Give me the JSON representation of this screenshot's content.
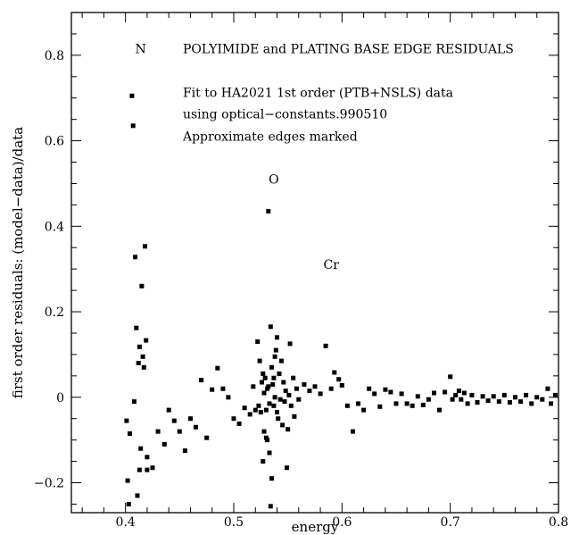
{
  "chart_data": {
    "type": "scatter",
    "title": "",
    "xlabel": "energy",
    "ylabel": "first order residuals: (model−data)/data",
    "xlim": [
      0.35,
      0.8
    ],
    "ylim": [
      -0.27,
      0.9
    ],
    "grid": false,
    "legend": "none",
    "marker_color": "#000000",
    "x_ticks": [
      0.4,
      0.5,
      0.6,
      0.7,
      0.8
    ],
    "x_tick_labels": [
      "0.4",
      "0.5",
      "0.6",
      "0.7",
      "0.8"
    ],
    "y_ticks": [
      -0.2,
      0,
      0.2,
      0.4,
      0.6,
      0.8
    ],
    "y_tick_labels": [
      "−0.2",
      "0",
      "0.2",
      "0.4",
      "0.6",
      "0.8"
    ],
    "annotations": [
      {
        "text": "N",
        "x": 0.414,
        "y": 0.805,
        "anchor": "middle"
      },
      {
        "text": "POLYIMIDE and PLATING BASE EDGE RESIDUALS",
        "x": 0.453,
        "y": 0.805,
        "anchor": "start"
      },
      {
        "text": "Fit to HA2021 1st order (PTB+NSLS) data",
        "x": 0.453,
        "y": 0.703,
        "anchor": "start"
      },
      {
        "text": "using optical−constants.990510",
        "x": 0.453,
        "y": 0.652,
        "anchor": "start"
      },
      {
        "text": "Approximate edges marked",
        "x": 0.453,
        "y": 0.6,
        "anchor": "start"
      },
      {
        "text": "O",
        "x": 0.537,
        "y": 0.5,
        "anchor": "middle"
      },
      {
        "text": "Cr",
        "x": 0.59,
        "y": 0.3,
        "anchor": "middle"
      }
    ],
    "series": [
      {
        "points": [
          [
            0.401,
            -0.055
          ],
          [
            0.402,
            -0.195
          ],
          [
            0.403,
            -0.25
          ],
          [
            0.404,
            -0.085
          ],
          [
            0.406,
            0.705
          ],
          [
            0.407,
            0.635
          ],
          [
            0.408,
            -0.01
          ],
          [
            0.409,
            0.328
          ],
          [
            0.41,
            0.162
          ],
          [
            0.411,
            -0.23
          ],
          [
            0.412,
            0.08
          ],
          [
            0.413,
            -0.17
          ],
          [
            0.413,
            0.118
          ],
          [
            0.414,
            -0.12
          ],
          [
            0.415,
            0.26
          ],
          [
            0.416,
            0.095
          ],
          [
            0.417,
            0.07
          ],
          [
            0.418,
            0.353
          ],
          [
            0.419,
            0.133
          ],
          [
            0.42,
            -0.14
          ],
          [
            0.42,
            -0.17
          ],
          [
            0.425,
            -0.165
          ],
          [
            0.43,
            -0.08
          ],
          [
            0.436,
            -0.11
          ],
          [
            0.44,
            -0.03
          ],
          [
            0.445,
            -0.055
          ],
          [
            0.45,
            -0.08
          ],
          [
            0.455,
            -0.125
          ],
          [
            0.46,
            -0.05
          ],
          [
            0.465,
            -0.07
          ],
          [
            0.47,
            0.04
          ],
          [
            0.475,
            -0.095
          ],
          [
            0.48,
            0.018
          ],
          [
            0.485,
            0.068
          ],
          [
            0.49,
            0.02
          ],
          [
            0.495,
            0.0
          ],
          [
            0.5,
            -0.05
          ],
          [
            0.505,
            -0.062
          ],
          [
            0.51,
            -0.025
          ],
          [
            0.515,
            -0.04
          ],
          [
            0.518,
            0.025
          ],
          [
            0.52,
            -0.03
          ],
          [
            0.522,
            0.13
          ],
          [
            0.523,
            -0.02
          ],
          [
            0.524,
            0.085
          ],
          [
            0.525,
            -0.035
          ],
          [
            0.526,
            0.035
          ],
          [
            0.527,
            -0.15
          ],
          [
            0.527,
            0.055
          ],
          [
            0.528,
            -0.08
          ],
          [
            0.528,
            0.01
          ],
          [
            0.529,
            0.045
          ],
          [
            0.53,
            -0.03
          ],
          [
            0.53,
            -0.095
          ],
          [
            0.531,
            0.02
          ],
          [
            0.531,
            -0.1
          ],
          [
            0.532,
            0.435
          ],
          [
            0.532,
            0.025
          ],
          [
            0.533,
            -0.015
          ],
          [
            0.533,
            -0.13
          ],
          [
            0.534,
            0.165
          ],
          [
            0.534,
            -0.255
          ],
          [
            0.535,
            -0.19
          ],
          [
            0.535,
            0.07
          ],
          [
            0.536,
            0.03
          ],
          [
            0.537,
            -0.02
          ],
          [
            0.537,
            0.045
          ],
          [
            0.538,
            0.095
          ],
          [
            0.538,
            0.0
          ],
          [
            0.539,
            0.11
          ],
          [
            0.54,
            -0.035
          ],
          [
            0.54,
            0.14
          ],
          [
            0.541,
            -0.05
          ],
          [
            0.542,
            0.055
          ],
          [
            0.543,
            -0.005
          ],
          [
            0.544,
            0.085
          ],
          [
            0.545,
            -0.065
          ],
          [
            0.546,
            0.035
          ],
          [
            0.547,
            -0.01
          ],
          [
            0.548,
            0.015
          ],
          [
            0.549,
            -0.165
          ],
          [
            0.55,
            -0.075
          ],
          [
            0.551,
            0.005
          ],
          [
            0.552,
            0.125
          ],
          [
            0.553,
            -0.02
          ],
          [
            0.555,
            0.045
          ],
          [
            0.556,
            -0.045
          ],
          [
            0.558,
            0.02
          ],
          [
            0.56,
            -0.005
          ],
          [
            0.565,
            0.03
          ],
          [
            0.57,
            0.015
          ],
          [
            0.575,
            0.025
          ],
          [
            0.58,
            0.008
          ],
          [
            0.585,
            0.12
          ],
          [
            0.59,
            0.02
          ],
          [
            0.593,
            0.058
          ],
          [
            0.597,
            0.042
          ],
          [
            0.6,
            0.028
          ],
          [
            0.605,
            -0.02
          ],
          [
            0.61,
            -0.08
          ],
          [
            0.615,
            -0.015
          ],
          [
            0.62,
            -0.03
          ],
          [
            0.625,
            0.02
          ],
          [
            0.63,
            0.008
          ],
          [
            0.635,
            -0.022
          ],
          [
            0.64,
            0.018
          ],
          [
            0.645,
            0.012
          ],
          [
            0.65,
            -0.015
          ],
          [
            0.655,
            0.008
          ],
          [
            0.66,
            -0.015
          ],
          [
            0.665,
            -0.02
          ],
          [
            0.67,
            0.002
          ],
          [
            0.675,
            -0.018
          ],
          [
            0.68,
            -0.005
          ],
          [
            0.685,
            0.01
          ],
          [
            0.69,
            -0.03
          ],
          [
            0.695,
            0.012
          ],
          [
            0.7,
            0.048
          ],
          [
            0.702,
            -0.005
          ],
          [
            0.705,
            0.005
          ],
          [
            0.708,
            0.015
          ],
          [
            0.71,
            -0.005
          ],
          [
            0.713,
            0.01
          ],
          [
            0.716,
            -0.015
          ],
          [
            0.72,
            0.005
          ],
          [
            0.725,
            -0.012
          ],
          [
            0.73,
            0.002
          ],
          [
            0.735,
            -0.008
          ],
          [
            0.74,
            0.002
          ],
          [
            0.745,
            -0.01
          ],
          [
            0.75,
            0.005
          ],
          [
            0.755,
            -0.012
          ],
          [
            0.76,
            0.0
          ],
          [
            0.765,
            -0.01
          ],
          [
            0.77,
            0.005
          ],
          [
            0.775,
            -0.015
          ],
          [
            0.78,
            0.0
          ],
          [
            0.785,
            -0.005
          ],
          [
            0.79,
            0.02
          ],
          [
            0.793,
            -0.015
          ],
          [
            0.797,
            0.005
          ]
        ]
      }
    ]
  }
}
